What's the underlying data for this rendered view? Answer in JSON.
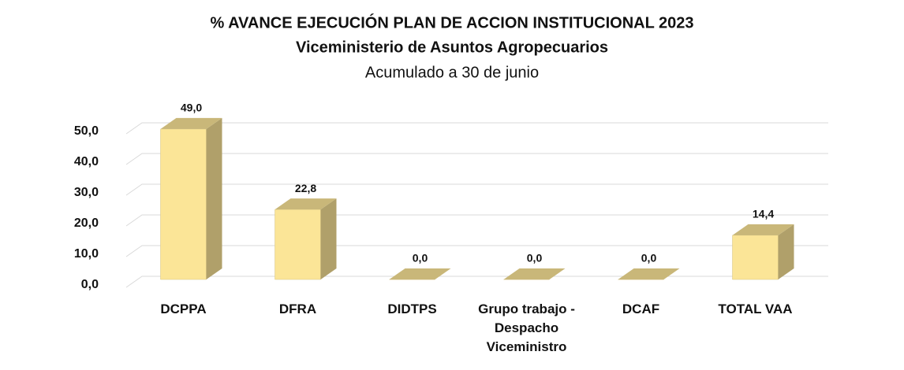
{
  "chart_data": {
    "type": "bar3d",
    "title": "% AVANCE EJECUCIÓN PLAN DE ACCION INSTITUCIONAL 2023",
    "subtitle": "Viceministerio de Asuntos Agropecuarios",
    "note": "Acumulado a 30 de junio",
    "categories": [
      "DCPPA",
      "DFRA",
      "DIDTPS",
      "Grupo trabajo - Despacho Viceministro",
      "DCAF",
      "TOTAL VAA"
    ],
    "values": [
      49.0,
      22.8,
      0.0,
      0.0,
      0.0,
      14.4
    ],
    "value_labels": [
      "49,0",
      "22,8",
      "0,0",
      "0,0",
      "0,0",
      "14,4"
    ],
    "color": "#fbe597",
    "ylim": [
      0,
      50
    ],
    "yticks": [
      {
        "value": 0,
        "label": "0,0"
      },
      {
        "value": 10,
        "label": "10,0"
      },
      {
        "value": 20,
        "label": "20,0"
      },
      {
        "value": 30,
        "label": "30,0"
      },
      {
        "value": 40,
        "label": "40,0"
      },
      {
        "value": 50,
        "label": "50,0"
      }
    ],
    "grid": true
  }
}
